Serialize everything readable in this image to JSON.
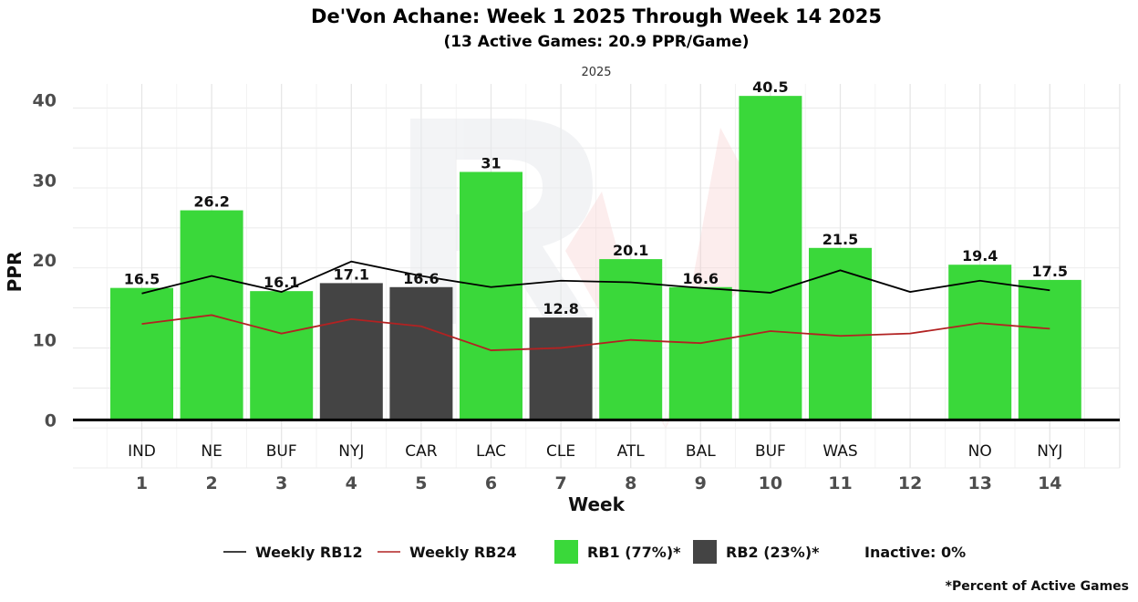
{
  "chart_data": {
    "type": "bar",
    "title": "De'Von Achane: Week 1 2025 Through Week 14 2025",
    "subtitle": "(13 Active Games: 20.9 PPR/Game)",
    "facet_label": "2025",
    "xlabel": "Week",
    "ylabel": "PPR",
    "ylim": [
      -6,
      42
    ],
    "y_ticks": [
      0,
      10,
      20,
      30,
      40
    ],
    "weeks": [
      1,
      2,
      3,
      4,
      5,
      6,
      7,
      8,
      9,
      10,
      11,
      12,
      13,
      14
    ],
    "opponents": [
      "IND",
      "NE",
      "BUF",
      "NYJ",
      "CAR",
      "LAC",
      "CLE",
      "ATL",
      "BAL",
      "BUF",
      "WAS",
      "",
      "NO",
      "NYJ"
    ],
    "values": [
      16.5,
      26.2,
      16.1,
      17.1,
      16.6,
      31,
      12.8,
      20.1,
      16.6,
      40.5,
      21.5,
      null,
      19.4,
      17.5
    ],
    "labels": [
      "16.5",
      "26.2",
      "16.1",
      "17.1",
      "16.6",
      "31",
      "12.8",
      "20.1",
      "16.6",
      "40.5",
      "21.5",
      "",
      "19.4",
      "17.5"
    ],
    "tiers": [
      "RB1",
      "RB1",
      "RB1",
      "RB2",
      "RB2",
      "RB1",
      "RB2",
      "RB1",
      "RB1",
      "RB1",
      "RB1",
      null,
      "RB1",
      "RB1"
    ],
    "series": [
      {
        "name": "Weekly RB12",
        "color": "#000000",
        "values": [
          15.8,
          18.0,
          16.0,
          19.8,
          18.0,
          16.6,
          17.4,
          17.2,
          16.5,
          15.9,
          18.7,
          16.0,
          17.4,
          16.2
        ]
      },
      {
        "name": "Weekly RB24",
        "color": "#b22222",
        "values": [
          12.0,
          13.1,
          10.8,
          12.6,
          11.7,
          8.7,
          9.0,
          10.0,
          9.6,
          11.1,
          10.5,
          10.8,
          12.1,
          11.4
        ]
      }
    ],
    "tier_colors": {
      "RB1": "#3ad83a",
      "RB2": "#444444"
    },
    "legend": [
      {
        "kind": "line",
        "label": "Weekly RB12",
        "color": "#000000"
      },
      {
        "kind": "line",
        "label": "Weekly RB24",
        "color": "#b22222"
      },
      {
        "kind": "box",
        "label": "RB1 (77%)*",
        "color": "#3ad83a"
      },
      {
        "kind": "box",
        "label": "RB2 (23%)*",
        "color": "#444444"
      },
      {
        "kind": "text",
        "label": "Inactive: 0%"
      }
    ],
    "caption": "*Percent of Active Games"
  }
}
